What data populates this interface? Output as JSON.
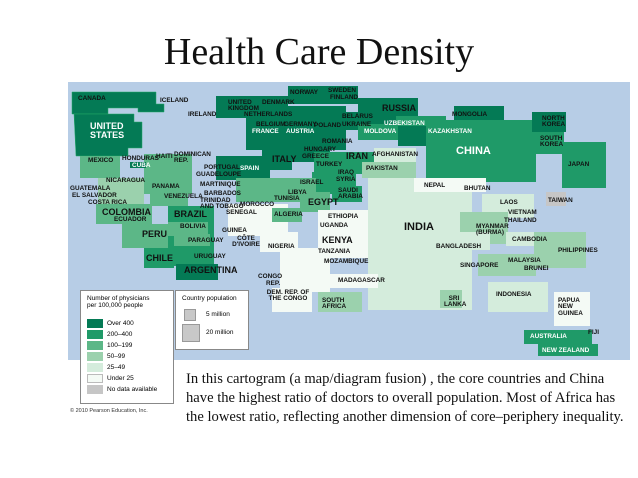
{
  "title": "Health Care Density",
  "colors": {
    "over400": "#047a55",
    "r200_400": "#1f9a68",
    "r100_199": "#5cb787",
    "r50_99": "#9bd1ad",
    "r25_49": "#d4ecdc",
    "under25": "#f4faf5",
    "nodata": "#c6c6c6",
    "ocean": "#b7cde6"
  },
  "legend_physicians": {
    "heading_line1": "Number of physicians",
    "heading_line2": "per 100,000 people",
    "items": [
      "Over 400",
      "200–400",
      "100–199",
      "50–99",
      "25–49",
      "Under 25",
      "No data available"
    ]
  },
  "legend_population": {
    "heading": "Country population",
    "items": [
      "5 million",
      "20 million"
    ]
  },
  "labels": {
    "canada": "CANADA",
    "iceland": "ICELAND",
    "norway": "NORWAY",
    "sweden": "SWEDEN",
    "finland": "FINLAND",
    "united_kingdom": "UNITED KINGDOM",
    "denmark": "DENMARK",
    "ireland": "IRELAND",
    "netherlands": "NETHERLANDS",
    "belgium": "BELGIUM",
    "germany": "GERMANY",
    "poland": "POLAND",
    "belarus": "BELARUS",
    "ukraine": "UKRAINE",
    "russia": "RUSSIA",
    "uzbekistan": "UZBEKISTAN",
    "mongolia": "MONGOLIA",
    "north_korea": "NORTH KOREA",
    "united_states": "UNITED STATES",
    "france": "FRANCE",
    "austria": "AUSTRIA",
    "moldova": "MOLDOVA",
    "kazakhstan": "KAZAKHSTAN",
    "south_korea": "SOUTH KOREA",
    "hungary": "HUNGARY",
    "romania": "ROMANIA",
    "china": "CHINA",
    "mexico": "MEXICO",
    "honduras": "HONDURAS",
    "haiti": "HAITI",
    "cuba": "CUBA",
    "dominican_rep": "DOMINICAN REP.",
    "italy": "ITALY",
    "greece": "GREECE",
    "iran": "IRAN",
    "afghanistan": "AFGHANISTAN",
    "turkey": "TURKEY",
    "japan": "JAPAN",
    "portugal": "PORTUGAL",
    "spain": "SPAIN",
    "pakistan": "PAKISTAN",
    "guadeloupe": "GUADELOUPE",
    "iraq": "IRAQ",
    "syria": "SYRIA",
    "nicaragua": "NICARAGUA",
    "panama": "PANAMA",
    "martinique": "MARTINIQUE",
    "israel": "ISRAEL",
    "guatemala": "GUATEMALA",
    "el_salvador": "EL SALVADOR",
    "barbados": "BARBADOS",
    "libya": "LIBYA",
    "saudi_arabia": "SAUDI ARABIA",
    "nepal": "NEPAL",
    "bhutan": "BHUTAN",
    "venezuela": "VENEZUELA",
    "trinidad_tobago": "TRINIDAD AND TOBAGO",
    "morocco": "MOROCCO",
    "tunisia": "TUNISIA",
    "egypt": "EGYPT",
    "costa_rica": "COSTA RICA",
    "laos": "LAOS",
    "taiwan": "TAIWAN",
    "colombia": "COLOMBIA",
    "ecuador": "ECUADOR",
    "brazil": "BRAZIL",
    "senegal": "SENEGAL",
    "algeria": "ALGERIA",
    "ethiopia": "ETHIOPIA",
    "vietnam": "VIETNAM",
    "thailand": "THAILAND",
    "peru": "PERU",
    "bolivia": "BOLIVIA",
    "guinea": "GUINEA",
    "uganda": "UGANDA",
    "india": "INDIA",
    "myanmar": "MYANMAR (BURMA)",
    "paraguay": "PARAGUAY",
    "cote_divoire": "CÔTE D'IVOIRE",
    "nigeria": "NIGERIA",
    "kenya": "KENYA",
    "cambodia": "CAMBODIA",
    "philippines": "PHILIPPINES",
    "bangladesh": "BANGLADESH",
    "chile": "CHILE",
    "uruguay": "URUGUAY",
    "tanzania": "TANZANIA",
    "mozambique": "MOZAMBIQUE",
    "singapore": "SINGAPORE",
    "malaysia": "MALAYSIA",
    "brunei": "BRUNEI",
    "argentina": "ARGENTINA",
    "congo": "CONGO",
    "rep": "REP.",
    "madagascar": "MADAGASCAR",
    "dem_rep_congo": "DEM. REP. OF THE CONGO",
    "south_africa": "SOUTH AFRICA",
    "sri_lanka": "SRI LANKA",
    "indonesia": "INDONESIA",
    "papua_new_guinea": "PAPUA NEW GUINEA",
    "fiji": "FIJI",
    "australia": "AUSTRALIA",
    "new_zealand": "NEW ZEALAND"
  },
  "copyright": "© 2010 Pearson Education, Inc.",
  "caption": "In this cartogram (a map/diagram fusion) , the core countries and China have the highest ratio of doctors to overall population. Most of Africa has the lowest ratio, reflecting another dimension of core–periphery inequality."
}
